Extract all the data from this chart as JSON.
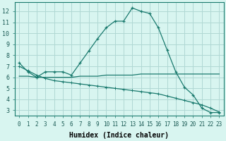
{
  "line1_x": [
    0,
    1,
    2,
    3,
    4,
    5,
    6,
    7,
    8,
    9,
    10,
    11,
    12,
    13,
    14,
    15,
    16,
    17,
    18,
    19,
    20,
    21,
    22,
    23
  ],
  "line1_y": [
    7.3,
    6.5,
    6.0,
    6.5,
    6.5,
    6.5,
    6.2,
    7.3,
    8.4,
    9.5,
    10.5,
    11.1,
    11.1,
    12.3,
    12.0,
    11.8,
    10.5,
    8.5,
    6.5,
    5.1,
    4.4,
    3.2,
    2.8,
    2.8
  ],
  "line2_x": [
    0,
    1,
    2,
    3,
    4,
    5,
    6,
    7,
    8,
    9,
    10,
    11,
    12,
    13,
    14,
    15,
    16,
    17,
    18,
    19,
    20,
    21,
    22,
    23
  ],
  "line2_y": [
    6.1,
    6.1,
    6.0,
    6.0,
    6.0,
    6.0,
    6.0,
    6.1,
    6.1,
    6.1,
    6.2,
    6.2,
    6.2,
    6.2,
    6.3,
    6.3,
    6.3,
    6.3,
    6.3,
    6.3,
    6.3,
    6.3,
    6.3,
    6.3
  ],
  "line3_x": [
    0,
    1,
    2,
    3,
    4,
    5,
    6,
    7,
    8,
    9,
    10,
    11,
    12,
    13,
    14,
    15,
    16,
    17,
    18,
    19,
    20,
    21,
    22,
    23
  ],
  "line3_y": [
    7.0,
    6.6,
    6.2,
    5.9,
    5.7,
    5.6,
    5.5,
    5.4,
    5.3,
    5.2,
    5.1,
    5.0,
    4.9,
    4.8,
    4.7,
    4.6,
    4.5,
    4.3,
    4.1,
    3.9,
    3.7,
    3.5,
    3.2,
    2.85
  ],
  "line_color": "#1a7a6e",
  "bg_color": "#d8f5f0",
  "grid_color": "#b0d8d4",
  "xlabel": "Humidex (Indice chaleur)",
  "xlim": [
    -0.5,
    23.5
  ],
  "ylim": [
    2.5,
    12.8
  ],
  "yticks": [
    3,
    4,
    5,
    6,
    7,
    8,
    9,
    10,
    11,
    12
  ],
  "xticks": [
    0,
    1,
    2,
    3,
    4,
    5,
    6,
    7,
    8,
    9,
    10,
    11,
    12,
    13,
    14,
    15,
    16,
    17,
    18,
    19,
    20,
    21,
    22,
    23
  ],
  "tick_fontsize": 5.5,
  "label_fontsize": 7.0
}
